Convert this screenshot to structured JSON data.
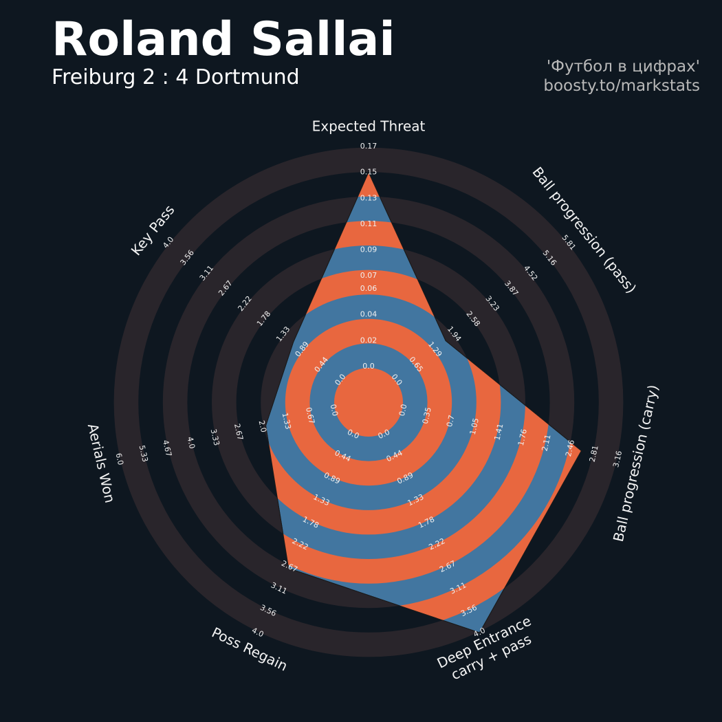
{
  "chart_data": {
    "type": "radar",
    "title": "Roland Sallai",
    "subtitle": "Freiburg 2 : 4 Dortmund",
    "credits": [
      "'Футбол в цифрах'",
      "boosty.to/markstats"
    ],
    "categories": [
      "Expected Threat",
      "Ball progression (pass)",
      "Ball progression (carry)",
      "Deep Entrance\ncarry + pass",
      "Poss Regain",
      "Aerials Won",
      "Key Pass"
    ],
    "values": [
      0.15,
      1.66,
      2.62,
      4.0,
      2.7,
      1.9,
      1.1
    ],
    "ranges": [
      [
        0,
        0.17
      ],
      [
        0,
        5.81
      ],
      [
        0,
        3.16
      ],
      [
        0,
        4
      ],
      [
        0,
        4
      ],
      [
        0,
        6
      ],
      [
        0,
        4
      ]
    ],
    "ticks": [
      [
        {
          "value": 0,
          "label": "0.0"
        },
        0.02,
        0.04,
        0.06,
        0.07,
        0.09,
        0.11,
        0.13,
        0.15,
        0.17
      ],
      [
        {
          "value": 0,
          "label": "0.0"
        },
        0.65,
        1.29,
        1.94,
        2.58,
        3.23,
        3.87,
        4.52,
        5.16,
        5.81
      ],
      [
        {
          "value": 0,
          "label": "0.0"
        },
        0.35,
        0.7,
        1.05,
        1.41,
        1.76,
        2.11,
        2.46,
        2.81,
        3.16
      ],
      [
        {
          "value": 0,
          "label": "0.0"
        },
        0.44,
        0.89,
        1.33,
        1.78,
        2.22,
        2.67,
        3.11,
        3.56,
        {
          "value": 4,
          "label": "4.0"
        }
      ],
      [
        {
          "value": 0,
          "label": "0.0"
        },
        0.44,
        0.89,
        1.33,
        1.78,
        2.22,
        2.67,
        3.11,
        3.56,
        {
          "value": 4,
          "label": "4.0"
        }
      ],
      [
        {
          "value": 0,
          "label": "0.0"
        },
        0.67,
        1.33,
        {
          "value": 2,
          "label": "2.0"
        },
        2.67,
        3.33,
        {
          "value": 4,
          "label": "4.0"
        },
        4.67,
        5.33,
        {
          "value": 6,
          "label": "6.0"
        }
      ],
      [
        {
          "value": 0,
          "label": "0.0"
        },
        0.44,
        0.89,
        1.33,
        1.78,
        2.22,
        2.67,
        3.11,
        3.56,
        {
          "value": 4,
          "label": "4.0"
        }
      ]
    ],
    "colors": {
      "fill": "#4276a0",
      "alt": "#e8673f",
      "ring": "#29252b",
      "background": "#0e1720"
    }
  }
}
